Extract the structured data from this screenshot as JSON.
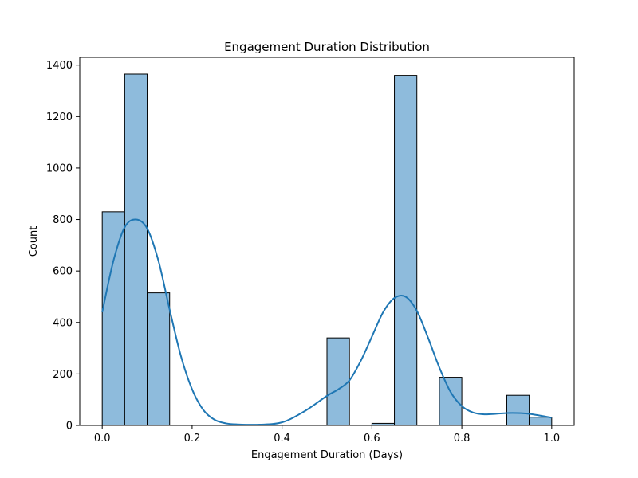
{
  "chart_data": {
    "type": "bar",
    "subtype": "histogram_with_kde",
    "title": "Engagement Duration Distribution",
    "xlabel": "Engagement Duration (Days)",
    "ylabel": "Count",
    "xlim": [
      -0.05,
      1.05
    ],
    "ylim": [
      0,
      1430
    ],
    "xticks": [
      0.0,
      0.2,
      0.4,
      0.6,
      0.8,
      1.0
    ],
    "xtick_labels": [
      "0.0",
      "0.2",
      "0.4",
      "0.6",
      "0.8",
      "1.0"
    ],
    "yticks": [
      0,
      200,
      400,
      600,
      800,
      1000,
      1200,
      1400
    ],
    "ytick_labels": [
      "0",
      "200",
      "400",
      "600",
      "800",
      "1000",
      "1200",
      "1400"
    ],
    "bins": [
      {
        "x0": 0.0,
        "x1": 0.05,
        "count": 830
      },
      {
        "x0": 0.05,
        "x1": 0.1,
        "count": 1365
      },
      {
        "x0": 0.1,
        "x1": 0.15,
        "count": 515
      },
      {
        "x0": 0.15,
        "x1": 0.2,
        "count": 0
      },
      {
        "x0": 0.2,
        "x1": 0.25,
        "count": 0
      },
      {
        "x0": 0.25,
        "x1": 0.3,
        "count": 0
      },
      {
        "x0": 0.3,
        "x1": 0.35,
        "count": 0
      },
      {
        "x0": 0.35,
        "x1": 0.4,
        "count": 0
      },
      {
        "x0": 0.4,
        "x1": 0.45,
        "count": 0
      },
      {
        "x0": 0.45,
        "x1": 0.5,
        "count": 0
      },
      {
        "x0": 0.5,
        "x1": 0.55,
        "count": 340
      },
      {
        "x0": 0.55,
        "x1": 0.6,
        "count": 0
      },
      {
        "x0": 0.6,
        "x1": 0.65,
        "count": 8
      },
      {
        "x0": 0.65,
        "x1": 0.7,
        "count": 1360
      },
      {
        "x0": 0.7,
        "x1": 0.75,
        "count": 0
      },
      {
        "x0": 0.75,
        "x1": 0.8,
        "count": 187
      },
      {
        "x0": 0.8,
        "x1": 0.85,
        "count": 0
      },
      {
        "x0": 0.85,
        "x1": 0.9,
        "count": 0
      },
      {
        "x0": 0.9,
        "x1": 0.95,
        "count": 117
      },
      {
        "x0": 0.95,
        "x1": 1.0,
        "count": 32
      }
    ],
    "kde": {
      "x": [
        0.0,
        0.025,
        0.05,
        0.075,
        0.1,
        0.125,
        0.15,
        0.175,
        0.2,
        0.225,
        0.25,
        0.275,
        0.3,
        0.35,
        0.4,
        0.45,
        0.5,
        0.525,
        0.55,
        0.575,
        0.6,
        0.625,
        0.65,
        0.675,
        0.7,
        0.725,
        0.75,
        0.775,
        0.8,
        0.825,
        0.85,
        0.875,
        0.9,
        0.925,
        0.95,
        0.975,
        1.0
      ],
      "y": [
        440,
        640,
        770,
        800,
        765,
        640,
        450,
        270,
        140,
        60,
        22,
        8,
        4,
        3,
        12,
        55,
        115,
        140,
        175,
        250,
        345,
        440,
        495,
        500,
        445,
        340,
        225,
        130,
        75,
        50,
        43,
        45,
        48,
        48,
        45,
        38,
        30
      ]
    },
    "bar_fill": "#8ebbdc",
    "bar_edge": "#000000",
    "kde_color": "#1f77b4",
    "grid": false,
    "legend": "none"
  }
}
